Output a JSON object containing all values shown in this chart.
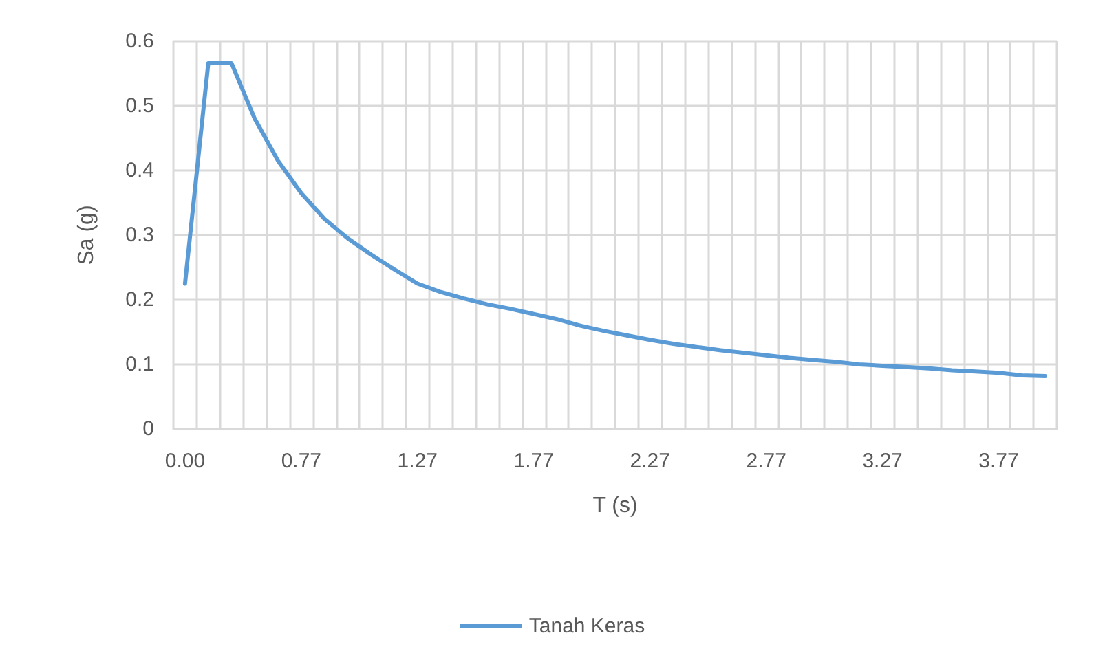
{
  "chart_data": {
    "type": "line",
    "xlabel": "T (s)",
    "ylabel": "Sa (g)",
    "categories": [
      "0.00",
      null,
      null,
      null,
      null,
      "0.77",
      null,
      null,
      null,
      null,
      "1.27",
      null,
      null,
      null,
      null,
      "1.77",
      null,
      null,
      null,
      null,
      "2.27",
      null,
      null,
      null,
      null,
      "2.77",
      null,
      null,
      null,
      null,
      "3.27",
      null,
      null,
      null,
      null,
      "3.77",
      null,
      null
    ],
    "series": [
      {
        "name": "Tanah Keras",
        "color": "#5b9bd5",
        "values": [
          0.225,
          0.566,
          0.566,
          0.48,
          0.415,
          0.365,
          0.325,
          0.295,
          0.27,
          0.247,
          0.225,
          0.212,
          0.202,
          0.193,
          0.186,
          0.178,
          0.17,
          0.16,
          0.152,
          0.145,
          0.138,
          0.132,
          0.127,
          0.122,
          0.118,
          0.114,
          0.11,
          0.107,
          0.104,
          0.1,
          0.098,
          0.096,
          0.094,
          0.091,
          0.089,
          0.087,
          0.083,
          0.082
        ]
      }
    ],
    "ylim": [
      0,
      0.6
    ],
    "yticks": [
      0,
      0.1,
      0.2,
      0.3,
      0.4,
      0.5,
      0.6
    ],
    "grid": true,
    "legend": "bottom",
    "marker": "none",
    "line_style": "solid"
  }
}
